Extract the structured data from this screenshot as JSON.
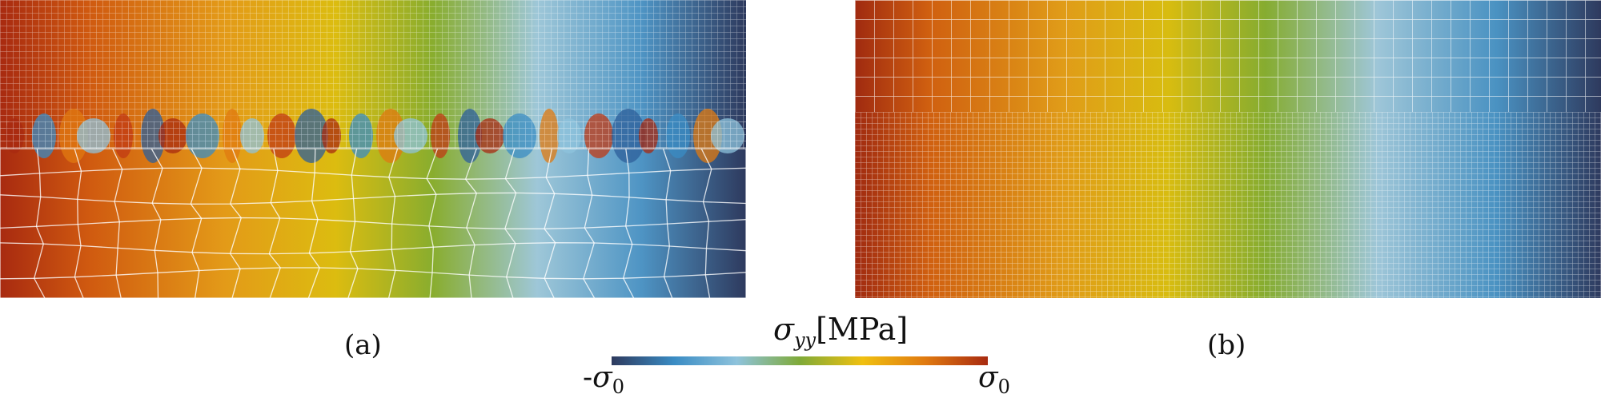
{
  "figure": {
    "panel_a_label": "(a)",
    "panel_b_label": "(b)"
  },
  "colorbar": {
    "title_symbol": "σ",
    "title_subscript": "yy",
    "title_unit": "[MPa]",
    "min_label_prefix": "-",
    "min_label_symbol": "σ",
    "min_label_subscript": "0",
    "max_label_symbol": "σ",
    "max_label_subscript": "0",
    "colors": [
      "#2e3a5e",
      "#3a8cc4",
      "#8ec3dc",
      "#7faa38",
      "#f0c010",
      "#e07a10",
      "#a82a10"
    ]
  }
}
